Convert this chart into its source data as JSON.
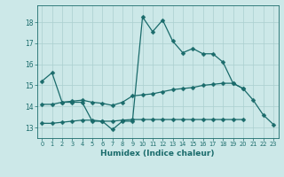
{
  "xlabel": "Humidex (Indice chaleur)",
  "x": [
    0,
    1,
    2,
    3,
    4,
    5,
    6,
    7,
    8,
    9,
    10,
    11,
    12,
    13,
    14,
    15,
    16,
    17,
    18,
    19,
    20,
    21,
    22,
    23
  ],
  "line1": [
    15.2,
    15.6,
    14.2,
    14.2,
    14.2,
    13.3,
    13.3,
    12.9,
    13.3,
    13.3,
    18.25,
    17.55,
    18.1,
    17.1,
    16.55,
    16.75,
    16.5,
    16.5,
    16.1,
    15.1,
    14.85,
    14.3,
    13.6,
    13.15
  ],
  "line2": [
    14.1,
    14.1,
    14.2,
    14.25,
    14.3,
    14.2,
    14.15,
    14.05,
    14.2,
    14.5,
    14.55,
    14.6,
    14.7,
    14.8,
    14.85,
    14.9,
    15.0,
    15.05,
    15.1,
    15.1,
    14.85,
    null,
    null,
    null
  ],
  "line3": [
    13.2,
    13.2,
    13.25,
    13.3,
    13.35,
    13.35,
    13.3,
    13.3,
    13.35,
    13.38,
    13.38,
    13.38,
    13.38,
    13.38,
    13.38,
    13.38,
    13.38,
    13.38,
    13.38,
    13.38,
    13.38,
    null,
    null,
    null
  ],
  "bg_color": "#cce8e8",
  "grid_color": "#aacfcf",
  "line_color": "#1a6b6b",
  "ylim": [
    12.5,
    18.8
  ],
  "yticks": [
    13,
    14,
    15,
    16,
    17,
    18
  ],
  "xticks": [
    0,
    1,
    2,
    3,
    4,
    5,
    6,
    7,
    8,
    9,
    10,
    11,
    12,
    13,
    14,
    15,
    16,
    17,
    18,
    19,
    20,
    21,
    22,
    23
  ]
}
